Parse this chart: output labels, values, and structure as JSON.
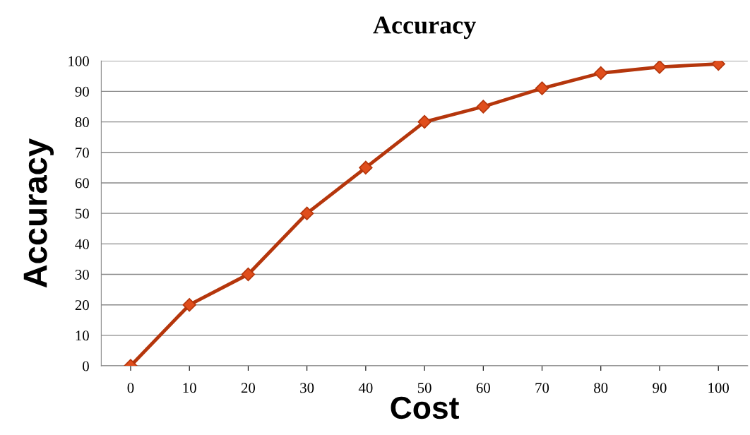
{
  "chart_data": {
    "type": "line",
    "title": "Accuracy",
    "xlabel": "Cost",
    "ylabel": "Accuracy",
    "categories": [
      "0",
      "10",
      "20",
      "30",
      "40",
      "50",
      "60",
      "70",
      "80",
      "90",
      "100"
    ],
    "series": [
      {
        "color": "#b5360c",
        "values": [
          0,
          20,
          30,
          50,
          65,
          80,
          85,
          91,
          96,
          98,
          99
        ]
      }
    ],
    "ylim": [
      0,
      100
    ],
    "yticks": [
      0,
      10,
      20,
      30,
      40,
      50,
      60,
      70,
      80,
      90,
      100
    ],
    "grid": "y",
    "marker": "diamond",
    "line_style": "solid",
    "legend": false
  }
}
